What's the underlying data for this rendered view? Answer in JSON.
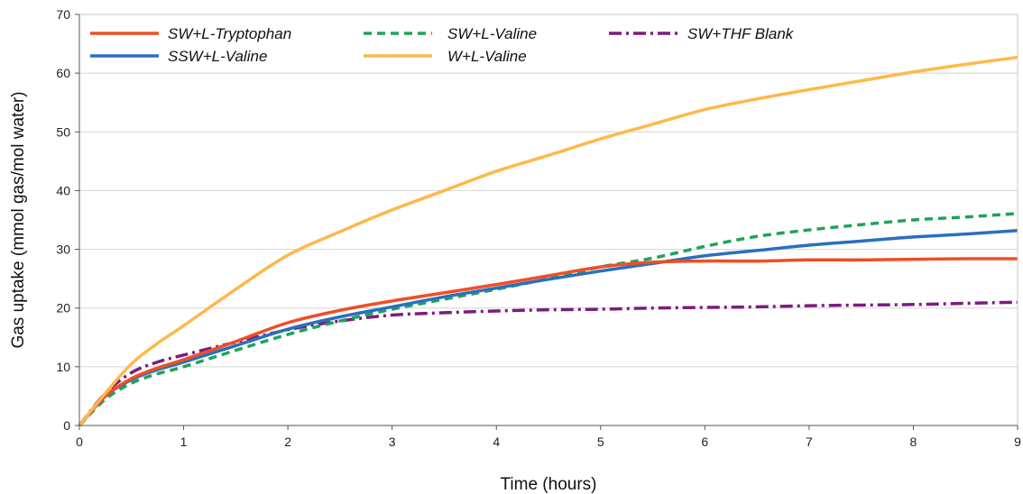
{
  "chart_data": {
    "type": "line",
    "title": "",
    "xlabel": "Time (hours)",
    "ylabel": "Gas uptake (mmol gas/mol water)",
    "xlim": [
      0,
      9
    ],
    "ylim": [
      0,
      70
    ],
    "xticks": [
      0,
      1,
      2,
      3,
      4,
      5,
      6,
      7,
      8,
      9
    ],
    "yticks": [
      0,
      10,
      20,
      30,
      40,
      50,
      60,
      70
    ],
    "grid": "horizontal",
    "legend_position": "top",
    "series": [
      {
        "name": "SW+L-Tryptophan",
        "color": "#f04e23",
        "dash": "solid",
        "x": [
          0,
          0.25,
          0.5,
          0.75,
          1,
          1.5,
          2,
          2.5,
          3,
          3.5,
          4,
          4.5,
          5,
          5.5,
          6,
          6.5,
          7,
          7.5,
          8,
          8.5,
          9
        ],
        "y": [
          0,
          5,
          8,
          9.8,
          11.2,
          14.3,
          17.5,
          19.6,
          21.2,
          22.6,
          24,
          25.5,
          27,
          27.8,
          28,
          28,
          28.2,
          28.2,
          28.3,
          28.4,
          28.4
        ]
      },
      {
        "name": "SW+L-Valine",
        "color": "#1fa35a",
        "dash": "dashed",
        "x": [
          0,
          0.25,
          0.5,
          0.75,
          1,
          1.5,
          2,
          2.5,
          3,
          3.5,
          4,
          4.5,
          5,
          5.5,
          6,
          6.5,
          7,
          7.5,
          8,
          8.5,
          9
        ],
        "y": [
          0,
          4.5,
          7.2,
          8.8,
          10,
          12.8,
          15.5,
          17.8,
          19.8,
          21.5,
          23.2,
          25,
          27,
          28.5,
          30.5,
          32.2,
          33.3,
          34.2,
          35,
          35.5,
          36.1
        ]
      },
      {
        "name": "SW+THF Blank",
        "color": "#7b1d7e",
        "dash": "dashdot",
        "x": [
          0,
          0.25,
          0.5,
          0.75,
          1,
          1.5,
          2,
          2.5,
          3,
          3.5,
          4,
          4.5,
          5,
          5.5,
          6,
          6.5,
          7,
          7.5,
          8,
          8.5,
          9
        ],
        "y": [
          0,
          5.5,
          9,
          10.8,
          12,
          14.2,
          16.3,
          17.8,
          18.8,
          19.2,
          19.5,
          19.7,
          19.8,
          20,
          20.1,
          20.2,
          20.4,
          20.5,
          20.6,
          20.8,
          21
        ]
      },
      {
        "name": "SSW+L-Valine",
        "color": "#2a6fbf",
        "dash": "solid",
        "x": [
          0,
          0.25,
          0.5,
          0.75,
          1,
          1.5,
          2,
          2.5,
          3,
          3.5,
          4,
          4.5,
          5,
          5.5,
          6,
          6.5,
          7,
          7.5,
          8,
          8.5,
          9
        ],
        "y": [
          0,
          5,
          7.8,
          9.5,
          10.8,
          13.6,
          16.4,
          18.5,
          20.2,
          21.9,
          23.4,
          24.9,
          26.3,
          27.6,
          28.9,
          29.8,
          30.7,
          31.4,
          32.1,
          32.6,
          33.2
        ]
      },
      {
        "name": "W+L-Valine",
        "color": "#fdb94b",
        "dash": "solid",
        "x": [
          0,
          0.25,
          0.5,
          0.75,
          1,
          1.5,
          2,
          2.5,
          3,
          3.5,
          4,
          4.5,
          5,
          5.5,
          6,
          6.5,
          7,
          7.5,
          8,
          8.5,
          9
        ],
        "y": [
          0,
          5.5,
          10.5,
          14,
          17,
          23.2,
          29,
          33,
          36.7,
          40,
          43.3,
          46,
          48.8,
          51.3,
          53.8,
          55.6,
          57.2,
          58.7,
          60.2,
          61.5,
          62.7
        ]
      }
    ]
  }
}
